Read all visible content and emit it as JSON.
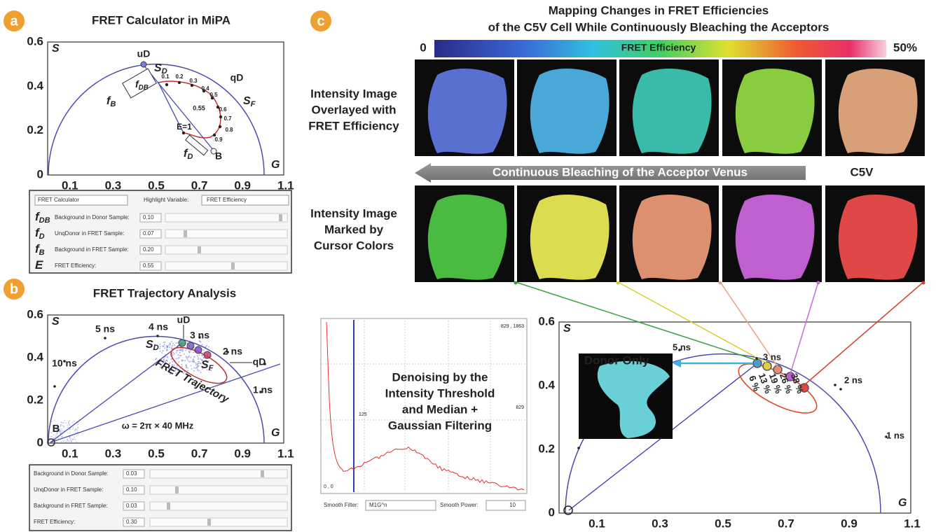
{
  "panel_a": {
    "label": "a",
    "title": "FRET Calculator in MiPA",
    "y_label": "S",
    "x_label": "G",
    "yticks": [
      "0.6",
      "0.4",
      "0.2",
      "0"
    ],
    "xticks": [
      "0.1",
      "0.3",
      "0.5",
      "0.7",
      "0.9",
      "1.1"
    ],
    "annotations": [
      "uD",
      "qD",
      "E=1",
      "B",
      "0.1",
      "0.2",
      "0.3",
      "0.4",
      "0.5",
      "0.55",
      "0.6",
      "0.7",
      "0.8",
      "0.9"
    ],
    "symbols": [
      {
        "text": "S",
        "sub": "D"
      },
      {
        "text": "S",
        "sub": "F"
      },
      {
        "text": "f",
        "sub": "DB"
      },
      {
        "text": "f",
        "sub": "B"
      },
      {
        "text": "f",
        "sub": "D"
      }
    ],
    "controls": {
      "menu": "FRET Calculator",
      "highlight_label": "Highlight Variable:",
      "highlight_value": "FRET Efficiency",
      "rows": [
        {
          "symbol": "f",
          "sub": "DB",
          "label": "Background in Donor Sample:",
          "value": "0.10"
        },
        {
          "symbol": "f",
          "sub": "D",
          "label": "UnqDonor in FRET Sample:",
          "value": "0.07"
        },
        {
          "symbol": "f",
          "sub": "B",
          "label": "Background in FRET Sample:",
          "value": "0.20"
        },
        {
          "symbol": "E",
          "label": "FRET Efficiency:",
          "value": "0.55"
        }
      ]
    }
  },
  "panel_b": {
    "label": "b",
    "title": "FRET Trajectory Analysis",
    "y_label": "S",
    "x_label": "G",
    "yticks": [
      "0.6",
      "0.4",
      "0.2",
      "0"
    ],
    "xticks": [
      "0.1",
      "0.3",
      "0.5",
      "0.7",
      "0.9",
      "1.1"
    ],
    "annotations": [
      "uD",
      "5 ns",
      "4 ns",
      "3 ns",
      "2 ns",
      "1 ns",
      "10 ns",
      "qD",
      "FRET Trajectory",
      "B",
      "ω = 2π × 40 MHz"
    ],
    "symbols": [
      {
        "text": "S",
        "sub": "D"
      },
      {
        "text": "S",
        "sub": "F"
      }
    ],
    "controls": {
      "rows": [
        {
          "label": "Background in Donor Sample:",
          "value": "0.03"
        },
        {
          "label": "UnqDonor in FRET Sample:",
          "value": "0.10"
        },
        {
          "label": "Background in FRET Sample:",
          "value": "0.03"
        },
        {
          "label": "FRET Efficiency:",
          "value": "0.30"
        }
      ]
    }
  },
  "panel_c": {
    "label": "c",
    "title": [
      "Mapping Changes in FRET Efficiencies",
      "of the C5V Cell While Continuously Bleaching the Acceptors"
    ],
    "colorbar": {
      "min": "0",
      "label": "FRET Efficiency",
      "max": "50%"
    },
    "row_labels": [
      [
        "Intensity Image",
        "Overlayed with",
        "FRET Efficiency"
      ],
      [
        "Intensity Image",
        "Marked by",
        "Cursor Colors"
      ]
    ],
    "arrow_label": "Continuous Bleaching of the Acceptor Venus",
    "cell_name": "C5V",
    "histogram": {
      "caption": [
        "Denoising by the",
        "Intensity Threshold",
        "and Median +",
        "Gaussian Filtering"
      ],
      "corner_labels": [
        "829 , 1863",
        "829",
        "125",
        "0 , 0"
      ],
      "filter_label": "Smooth Filter:",
      "filter_value": "M1G^n",
      "power_label": "Smooth Power:",
      "power_value": "10"
    },
    "phasor": {
      "y_label": "S",
      "x_label": "G",
      "yticks": [
        "0.6",
        "0.4",
        "0.2",
        "0"
      ],
      "xticks": [
        "0.1",
        "0.3",
        "0.5",
        "0.7",
        "0.9",
        "1.1"
      ],
      "inset_label": "Donor Only",
      "lifetimes": [
        "5 ns",
        "3 ns",
        "2 ns",
        "1 ns"
      ],
      "percents": [
        "6 %",
        "13 %",
        "19 %",
        "26 %",
        "38 %"
      ]
    }
  }
}
